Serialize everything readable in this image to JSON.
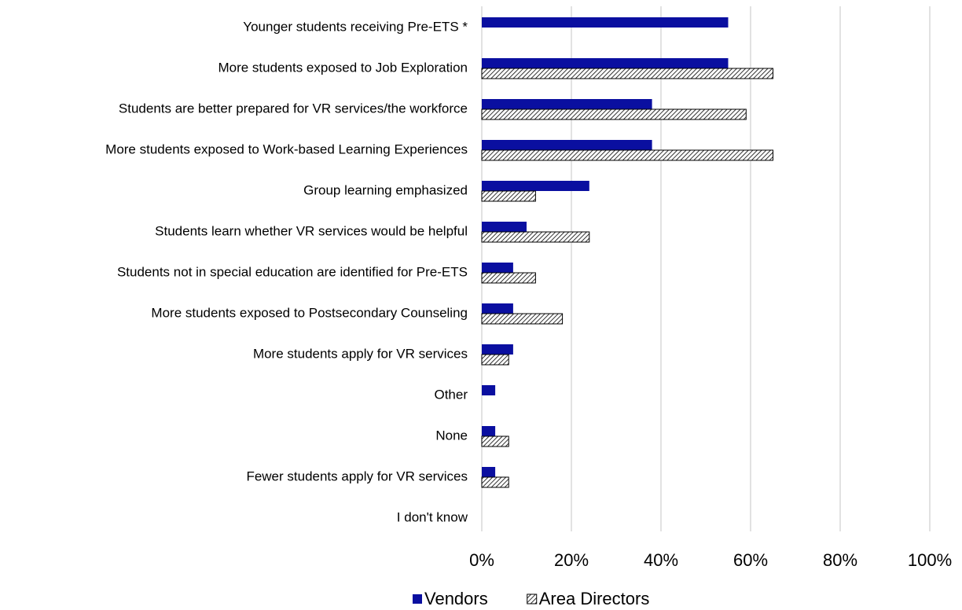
{
  "chart_data": {
    "type": "hbar",
    "categories": [
      "Younger students receiving Pre-ETS *",
      "More students exposed to Job Exploration",
      "Students are better prepared for VR services/the workforce",
      "More students exposed to Work-based Learning Experiences",
      "Group learning emphasized",
      "Students learn whether VR services would be helpful",
      "Students not in special education are identified for Pre-ETS",
      "More students exposed to Postsecondary Counseling",
      "More students apply for VR services",
      "Other",
      "None",
      "Fewer students apply for VR services",
      "I don't know"
    ],
    "series": [
      {
        "name": "Vendors",
        "color": "#0a0fa0",
        "pattern": "solid",
        "values": [
          55,
          55,
          38,
          38,
          24,
          10,
          7,
          7,
          7,
          3,
          3,
          3,
          0
        ]
      },
      {
        "name": "Area Directors",
        "color": "#000000",
        "pattern": "hatch",
        "values": [
          null,
          65,
          59,
          65,
          12,
          24,
          12,
          18,
          6,
          null,
          6,
          6,
          0
        ]
      }
    ],
    "xlim": [
      0,
      100
    ],
    "xticks": [
      {
        "value": 0,
        "label": "0%"
      },
      {
        "value": 20,
        "label": "20%"
      },
      {
        "value": 40,
        "label": "40%"
      },
      {
        "value": 60,
        "label": "60%"
      },
      {
        "value": 80,
        "label": "80%"
      },
      {
        "value": 100,
        "label": "100%"
      }
    ],
    "grid": true,
    "legend": "bottom"
  }
}
